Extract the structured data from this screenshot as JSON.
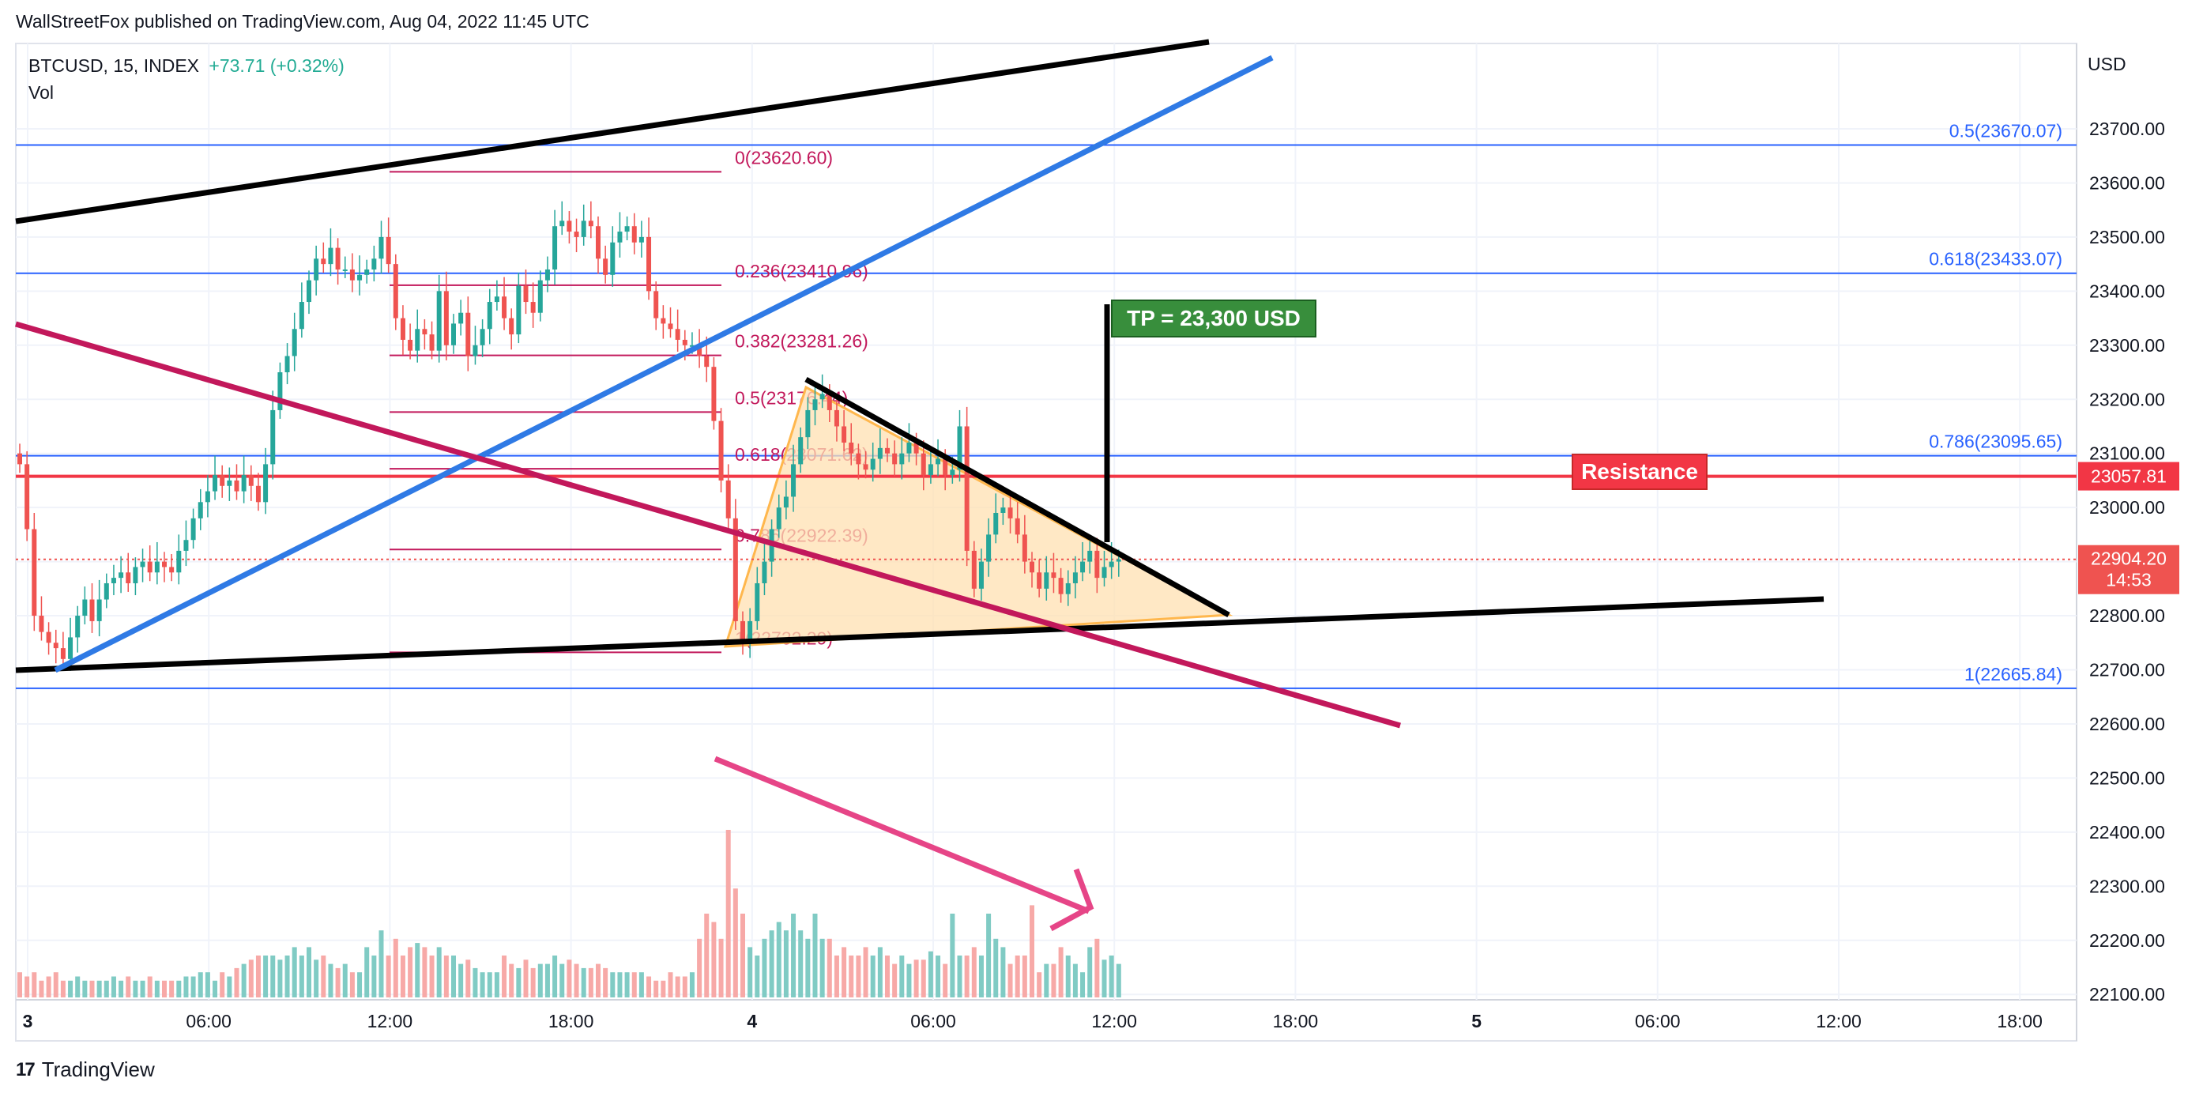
{
  "header": {
    "published": "WallStreetFox published on TradingView.com, Aug 04, 2022 11:45 UTC",
    "symbol": "BTCUSD, 15, INDEX",
    "change": "+73.71 (+0.32%)",
    "vol_label": "Vol",
    "currency": "USD"
  },
  "footer": {
    "brand": "TradingView",
    "logo_icon": "tradingview-logo-icon"
  },
  "colors": {
    "up": "#26a69a",
    "down": "#ef5350",
    "fib_right": "#2962ff",
    "fib_left": "#c2185b",
    "resistance": "#f23645",
    "tp_box": "#388e3c",
    "channel_blue": "#2f7ae5",
    "trend_magenta": "#c2185b",
    "triangle_fill": "#ffe0b2",
    "volume_arrow": "#e91e63"
  },
  "chart_data": {
    "type": "candlestick",
    "title": "",
    "ylim": [
      22100,
      23780
    ],
    "y_ticks": [
      "23700.00",
      "23600.00",
      "23500.00",
      "23400.00",
      "23300.00",
      "23200.00",
      "23100.00",
      "23000.00",
      "22900.00",
      "22800.00",
      "22700.00",
      "22600.00",
      "22500.00",
      "22400.00",
      "22300.00",
      "22200.00",
      "22100.00"
    ],
    "x_ticks": [
      "3",
      "06:00",
      "12:00",
      "18:00",
      "4",
      "06:00",
      "12:00",
      "18:00",
      "5",
      "06:00",
      "12:00",
      "18:00"
    ],
    "ohlc_close": [
      23080,
      22960,
      22800,
      22770,
      22750,
      22740,
      22720,
      22760,
      22800,
      22830,
      22790,
      22830,
      22860,
      22870,
      22880,
      22860,
      22890,
      22900,
      22880,
      22900,
      22890,
      22880,
      22920,
      22940,
      22980,
      23010,
      23030,
      23060,
      23040,
      23050,
      23030,
      23060,
      23040,
      23010,
      23080,
      23180,
      23250,
      23280,
      23330,
      23380,
      23420,
      23460,
      23450,
      23480,
      23440,
      23440,
      23420,
      23430,
      23440,
      23460,
      23500,
      23450,
      23350,
      23310,
      23290,
      23330,
      23320,
      23290,
      23400,
      23300,
      23340,
      23360,
      23280,
      23300,
      23330,
      23380,
      23390,
      23350,
      23320,
      23410,
      23380,
      23360,
      23420,
      23440,
      23520,
      23530,
      23510,
      23500,
      23530,
      23520,
      23460,
      23430,
      23490,
      23510,
      23520,
      23490,
      23500,
      23400,
      23350,
      23340,
      23330,
      23310,
      23300,
      23300,
      23280,
      23260,
      23160,
      23050,
      22980,
      22790,
      22750,
      22790,
      22860,
      22900,
      22960,
      23000,
      23020,
      23080,
      23130,
      23180,
      23200,
      23210,
      23180,
      23150,
      23120,
      23100,
      23080,
      23070,
      23090,
      23110,
      23100,
      23080,
      23100,
      23120,
      23100,
      23060,
      23080,
      23090,
      23060,
      23070,
      23150,
      22920,
      22850,
      22900,
      22950,
      22990,
      23000,
      22980,
      22950,
      22900,
      22880,
      22850,
      22880,
      22870,
      22840,
      22860,
      22880,
      22900,
      22920,
      22870,
      22890,
      22900,
      22904.2
    ],
    "volume": [
      3,
      2.5,
      3,
      2,
      2.5,
      3,
      2,
      2,
      2.5,
      2,
      2,
      2,
      2,
      2.5,
      2,
      2.5,
      2,
      2,
      2.5,
      2,
      2,
      2,
      2,
      2.5,
      2.5,
      3,
      3,
      2,
      3,
      2.5,
      3.5,
      4,
      4.5,
      5,
      5,
      5,
      4.5,
      5,
      6,
      5,
      6,
      4.5,
      5,
      4,
      3.5,
      4,
      3,
      3,
      6,
      5,
      8,
      5,
      7,
      5,
      6,
      6.5,
      6,
      5,
      6,
      5,
      5,
      4,
      4.5,
      3.5,
      3,
      3,
      3,
      5,
      4,
      3.5,
      4.5,
      3.5,
      4,
      4,
      5,
      4,
      4.5,
      4,
      3.5,
      3.5,
      4,
      3.5,
      3,
      3,
      3,
      3,
      3,
      2.5,
      2,
      2,
      3,
      2.5,
      2.5,
      3,
      7,
      10,
      9,
      7,
      20,
      13,
      10,
      6,
      5,
      7,
      8,
      9,
      8,
      10,
      8,
      7,
      10,
      7,
      7,
      5,
      6,
      5,
      5,
      6,
      5,
      6,
      5,
      4,
      5,
      4,
      4.5,
      4.5,
      5.5,
      5,
      4,
      10,
      5,
      5,
      6,
      5,
      10,
      7,
      6,
      4,
      5,
      5,
      11,
      3,
      4,
      4,
      6,
      5,
      4,
      3,
      6,
      7,
      4.5,
      5,
      4
    ]
  },
  "fib_left": {
    "labels": [
      "0(23620.60)",
      "0.236(23410.96)",
      "0.382(23281.26)",
      "0.5(23176.44)",
      "0.618(23071.62)",
      "0.786(22922.39)",
      "1(22732.29)"
    ],
    "prices": [
      23620.6,
      23410.96,
      23281.26,
      23176.44,
      23071.62,
      22922.39,
      22732.29
    ]
  },
  "fib_right": {
    "labels": [
      "0.5(23670.07)",
      "0.618(23433.07)",
      "0.786(23095.65)",
      "1(22665.84)"
    ],
    "prices": [
      23670.07,
      23433.07,
      23095.65,
      22665.84
    ]
  },
  "annotations": {
    "tp_label": "TP = 23,300 USD",
    "resistance_label": "Resistance",
    "resistance_price": "23057.81",
    "last_price": "22904.20",
    "countdown": "14:53"
  }
}
